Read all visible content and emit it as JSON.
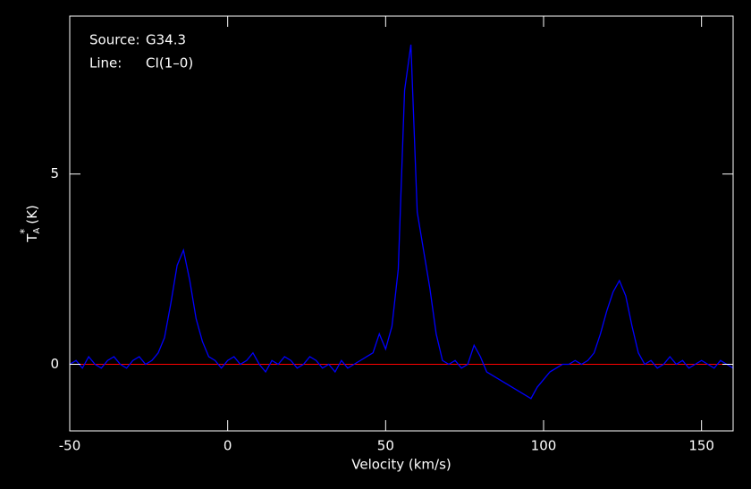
{
  "chart_data": {
    "type": "line",
    "annotations": [
      [
        "Source:",
        "G34.3"
      ],
      [
        "Line:",
        "CI(1–0)"
      ]
    ],
    "x_label": "Velocity (km/s)",
    "y_label": {
      "main": "T",
      "sub": "A",
      "sup": "*",
      "unit": "(K)"
    },
    "color": "#0000ff",
    "baseline": {
      "value": 0,
      "color": "#ff0000"
    },
    "xlim": [
      -50,
      160
    ],
    "xticks": [
      -50,
      0,
      50,
      100,
      150
    ],
    "ylim": [
      -1.75,
      9.15
    ],
    "yticks": [
      0,
      5
    ],
    "x": [
      -50,
      -48,
      -46,
      -44,
      -42,
      -40,
      -38,
      -36,
      -34,
      -32,
      -30,
      -28,
      -26,
      -24,
      -22,
      -20,
      -18,
      -16,
      -14,
      -12,
      -10,
      -8,
      -6,
      -4,
      -2,
      0,
      2,
      4,
      6,
      8,
      10,
      12,
      14,
      16,
      18,
      20,
      22,
      24,
      26,
      28,
      30,
      32,
      34,
      36,
      38,
      40,
      42,
      44,
      46,
      48,
      50,
      52,
      54,
      56,
      58,
      60,
      62,
      64,
      66,
      68,
      70,
      72,
      74,
      76,
      78,
      80,
      82,
      84,
      86,
      88,
      90,
      92,
      94,
      96,
      98,
      100,
      102,
      104,
      106,
      108,
      110,
      112,
      114,
      116,
      118,
      120,
      122,
      124,
      126,
      128,
      130,
      132,
      134,
      136,
      138,
      140,
      142,
      144,
      146,
      148,
      150,
      152,
      154,
      156,
      158,
      160
    ],
    "values": [
      0.0,
      0.1,
      -0.1,
      0.2,
      0.0,
      -0.1,
      0.1,
      0.2,
      0.0,
      -0.1,
      0.1,
      0.2,
      0.0,
      0.1,
      0.3,
      0.7,
      1.6,
      2.6,
      3.0,
      2.2,
      1.2,
      0.6,
      0.2,
      0.1,
      -0.1,
      0.1,
      0.2,
      0.0,
      0.1,
      0.3,
      0.0,
      -0.2,
      0.1,
      0.0,
      0.2,
      0.1,
      -0.1,
      0.0,
      0.2,
      0.1,
      -0.1,
      0.0,
      -0.2,
      0.1,
      -0.1,
      0.0,
      0.1,
      0.2,
      0.3,
      0.8,
      0.4,
      1.0,
      2.5,
      7.2,
      8.4,
      4.0,
      3.0,
      2.0,
      0.8,
      0.1,
      0.0,
      0.1,
      -0.1,
      0.0,
      0.5,
      0.2,
      -0.2,
      -0.3,
      -0.4,
      -0.5,
      -0.6,
      -0.7,
      -0.8,
      -0.9,
      -0.6,
      -0.4,
      -0.2,
      -0.1,
      0.0,
      0.0,
      0.1,
      0.0,
      0.1,
      0.3,
      0.8,
      1.4,
      1.9,
      2.2,
      1.8,
      1.0,
      0.3,
      0.0,
      0.1,
      -0.1,
      0.0,
      0.2,
      0.0,
      0.1,
      -0.1,
      0.0,
      0.1,
      0.0,
      -0.1,
      0.1,
      0.0,
      -0.1
    ]
  }
}
